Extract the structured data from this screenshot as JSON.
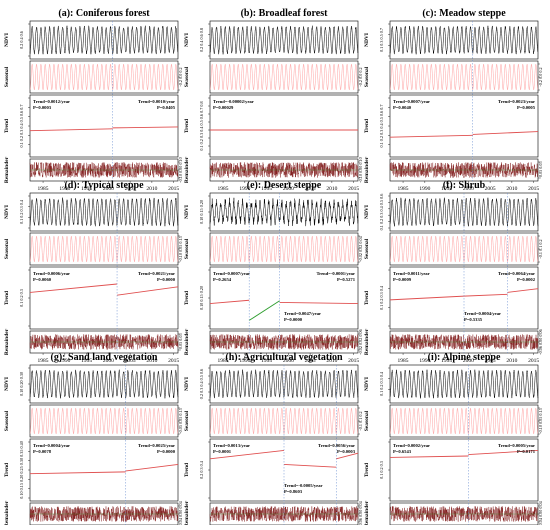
{
  "figure": {
    "line_color": "#000000",
    "seasonal_color": "#ff8a8a",
    "trend_line_color": "#e05050",
    "remainder_color": "#7a1010",
    "remainder_accent_color": "#2e9e2e",
    "break_line_color": "#6a8fd0"
  },
  "row_labels": [
    "NDVI",
    "Seasonal",
    "Trend",
    "Remainder"
  ],
  "chart_data": [
    {
      "type": "line",
      "title": "(a): Coniferous forest",
      "x_ticks": [
        1985,
        1990,
        1995,
        2000,
        2005,
        2010,
        2015
      ],
      "xlim": [
        1982,
        2016
      ],
      "breakpoints": [
        2001
      ],
      "trend_segments": [
        {
          "x": [
            1982,
            2001
          ],
          "y": [
            0.35,
            0.37
          ]
        },
        {
          "x": [
            2001,
            2016
          ],
          "y": [
            0.38,
            0.39
          ]
        }
      ],
      "annotations": [
        {
          "text": "Trend=0.0012/year",
          "pos": "left"
        },
        {
          "text": "P=0.0003",
          "pos": "left"
        },
        {
          "text": "Trend=0.0010/year",
          "pos": "right"
        },
        {
          "text": "P=0.0405",
          "pos": "right"
        }
      ],
      "panels": [
        {
          "label": "NDVI",
          "ticks": [
            "0.2",
            "0.4",
            "0.6"
          ]
        },
        {
          "label": "Seasonal",
          "ticks": [
            "-0.2",
            "0.0",
            "0.2"
          ]
        },
        {
          "label": "Trend",
          "ticks": [
            "0.1",
            "0.2",
            "0.3",
            "0.4",
            "0.5",
            "0.6",
            "0.7"
          ]
        },
        {
          "label": "Remainder",
          "ticks": [
            "-0.10",
            "0.00",
            "0.10"
          ]
        }
      ]
    },
    {
      "type": "line",
      "title": "(b): Broadleaf forest",
      "x_ticks": [
        1985,
        1990,
        1995,
        2000,
        2005,
        2010,
        2015
      ],
      "xlim": [
        1982,
        2016
      ],
      "breakpoints": [],
      "trend_segments": [
        {
          "x": [
            1982,
            2016
          ],
          "y": [
            0.4,
            0.4
          ]
        }
      ],
      "annotations": [
        {
          "text": "Trend=-0.00002/year",
          "pos": "left"
        },
        {
          "text": "P=0.00029",
          "pos": "left"
        }
      ],
      "panels": [
        {
          "label": "NDVI",
          "ticks": [
            "0.2",
            "0.4",
            "0.6",
            "0.8"
          ]
        },
        {
          "label": "Seasonal",
          "ticks": [
            "-0.2",
            "0.0",
            "0.2"
          ]
        },
        {
          "label": "Trend",
          "ticks": [
            "0.1",
            "0.2",
            "0.3",
            "0.4",
            "0.5",
            "0.6",
            "0.7",
            "0.8"
          ]
        },
        {
          "label": "Remainder",
          "ticks": [
            "-0.10",
            "0.00",
            "0.10"
          ]
        }
      ]
    },
    {
      "type": "line",
      "title": "(c): Meadow steppe",
      "x_ticks": [
        1985,
        1990,
        1995,
        2000,
        2005,
        2010,
        2015
      ],
      "xlim": [
        1982,
        2016
      ],
      "breakpoints": [
        2001
      ],
      "trend_segments": [
        {
          "x": [
            1982,
            2001
          ],
          "y": [
            0.28,
            0.3
          ]
        },
        {
          "x": [
            2001,
            2016
          ],
          "y": [
            0.31,
            0.34
          ]
        }
      ],
      "annotations": [
        {
          "text": "Trend=0.0007/year",
          "pos": "left"
        },
        {
          "text": "P=0.0040",
          "pos": "left"
        },
        {
          "text": "Trend=0.0023/year",
          "pos": "right"
        },
        {
          "text": "P=0.0005",
          "pos": "right"
        }
      ],
      "panels": [
        {
          "label": "NDVI",
          "ticks": [
            "0.1",
            "0.3",
            "0.5",
            "0.7"
          ]
        },
        {
          "label": "Seasonal",
          "ticks": [
            "-0.2",
            "0.0",
            "0.2"
          ]
        },
        {
          "label": "Trend",
          "ticks": [
            "0.1",
            "0.2",
            "0.3",
            "0.4",
            "0.5",
            "0.6",
            "0.7"
          ]
        },
        {
          "label": "Remainder",
          "ticks": [
            "-0.05",
            "0.05"
          ]
        }
      ]
    },
    {
      "type": "line",
      "title": "(d): Typical steppe",
      "x_ticks": [
        1985,
        1990,
        1995,
        2000,
        2005,
        2010,
        2015
      ],
      "xlim": [
        1982,
        2016
      ],
      "breakpoints": [
        2002
      ],
      "trend_segments": [
        {
          "x": [
            1982,
            2002
          ],
          "y": [
            0.22,
            0.25
          ]
        },
        {
          "x": [
            2002,
            2016
          ],
          "y": [
            0.21,
            0.24
          ]
        }
      ],
      "annotations": [
        {
          "text": "Trend=0.0006/year",
          "pos": "left"
        },
        {
          "text": "P=0.0060",
          "pos": "left"
        },
        {
          "text": "Trend=0.0021/year",
          "pos": "right"
        },
        {
          "text": "P=0.0000",
          "pos": "right"
        }
      ],
      "panels": [
        {
          "label": "NDVI",
          "ticks": [
            "0.1",
            "0.2",
            "0.3",
            "0.4"
          ]
        },
        {
          "label": "Seasonal",
          "ticks": [
            "-0.10",
            "0.05",
            "0.15"
          ]
        },
        {
          "label": "Trend",
          "ticks": [
            "0.1",
            "0.2",
            "0.3"
          ]
        },
        {
          "label": "Remainder",
          "ticks": [
            "-0.05",
            "0.05"
          ]
        }
      ]
    },
    {
      "type": "line",
      "title": "(e): Desert steppe",
      "x_ticks": [
        1985,
        1990,
        1995,
        2000,
        2005,
        2010,
        2015
      ],
      "xlim": [
        1982,
        2016
      ],
      "breakpoints": [
        1991,
        1998
      ],
      "trend_segments": [
        {
          "x": [
            1982,
            1991
          ],
          "y": [
            0.14,
            0.146
          ]
        },
        {
          "x": [
            1991,
            1998
          ],
          "y": [
            0.11,
            0.145
          ]
        },
        {
          "x": [
            1998,
            2016
          ],
          "y": [
            0.142,
            0.14
          ]
        }
      ],
      "annotations": [
        {
          "text": "Trend=0.0007/year",
          "pos": "left"
        },
        {
          "text": "P=0.2654",
          "pos": "left"
        },
        {
          "text": "Trend=-0.0001/year",
          "pos": "right"
        },
        {
          "text": "P=0.5271",
          "pos": "right"
        },
        {
          "text": "Trend=0.0047/year",
          "pos": "middle"
        },
        {
          "text": "P=0.0000",
          "pos": "middle"
        }
      ],
      "panels": [
        {
          "label": "NDVI",
          "ticks": [
            "0.10",
            "0.15",
            "0.20"
          ]
        },
        {
          "label": "Seasonal",
          "ticks": [
            "-0.02",
            "0.02",
            "0.04"
          ]
        },
        {
          "label": "Trend",
          "ticks": [
            "0.10",
            "0.15",
            "0.20"
          ]
        },
        {
          "label": "Remainder",
          "ticks": [
            "-0.02",
            "0.02",
            "0.06"
          ]
        }
      ]
    },
    {
      "type": "line",
      "title": "(f): Shrub",
      "x_ticks": [
        1985,
        1990,
        1995,
        2000,
        2005,
        2010,
        2015
      ],
      "xlim": [
        1982,
        2016
      ],
      "breakpoints": [
        1999,
        2009
      ],
      "trend_segments": [
        {
          "x": [
            1982,
            1999
          ],
          "y": [
            0.24,
            0.26
          ]
        },
        {
          "x": [
            1999,
            2009
          ],
          "y": [
            0.26,
            0.27
          ]
        },
        {
          "x": [
            2009,
            2016
          ],
          "y": [
            0.28,
            0.3
          ]
        }
      ],
      "annotations": [
        {
          "text": "Trend=0.0011/year",
          "pos": "left"
        },
        {
          "text": "P=0.0009",
          "pos": "left"
        },
        {
          "text": "Trend=0.0004/year",
          "pos": "middle"
        },
        {
          "text": "P=0.5335",
          "pos": "middle"
        },
        {
          "text": "Trend=0.0064/year",
          "pos": "right"
        },
        {
          "text": "P=0.0002",
          "pos": "right"
        }
      ],
      "panels": [
        {
          "label": "NDVI",
          "ticks": [
            "0.1",
            "0.2",
            "0.3",
            "0.4",
            "0.5",
            "0.6"
          ]
        },
        {
          "label": "Seasonal",
          "ticks": [
            "-0.1",
            "0.1",
            "0.2"
          ]
        },
        {
          "label": "Trend",
          "ticks": [
            "0.1",
            "0.2",
            "0.3",
            "0.4"
          ]
        },
        {
          "label": "Remainder",
          "ticks": [
            "-0.06",
            "0.00",
            "0.06"
          ]
        }
      ]
    },
    {
      "type": "line",
      "title": "(g): Sand land vegetation",
      "x_ticks": [
        1985,
        1990,
        1995,
        2000,
        2005,
        2010,
        2015
      ],
      "xlim": [
        1982,
        2016
      ],
      "breakpoints": [
        2004
      ],
      "trend_segments": [
        {
          "x": [
            1982,
            2004
          ],
          "y": [
            0.23,
            0.24
          ]
        },
        {
          "x": [
            2004,
            2016
          ],
          "y": [
            0.245,
            0.28
          ]
        }
      ],
      "annotations": [
        {
          "text": "Trend=0.0004/year",
          "pos": "left"
        },
        {
          "text": "P=0.0078",
          "pos": "left"
        },
        {
          "text": "Trend=0.0025/year",
          "pos": "right"
        },
        {
          "text": "P=0.0000",
          "pos": "right"
        }
      ],
      "panels": [
        {
          "label": "NDVI",
          "ticks": [
            "0.10",
            "0.20",
            "0.30"
          ]
        },
        {
          "label": "Seasonal",
          "ticks": [
            "-0.05",
            "0.05",
            "0.15"
          ]
        },
        {
          "label": "Trend",
          "ticks": [
            "0.10",
            "0.15",
            "0.20",
            "0.25",
            "0.30",
            "0.35",
            "0.40"
          ]
        },
        {
          "label": "Remainder",
          "ticks": [
            "-0.04",
            "0.00",
            "0.04"
          ]
        }
      ]
    },
    {
      "type": "line",
      "title": "(h): Agricultural vegetation",
      "x_ticks": [
        1985,
        1990,
        1995,
        2000,
        2005,
        2010,
        2015
      ],
      "xlim": [
        1982,
        2016
      ],
      "breakpoints": [
        1999,
        2011
      ],
      "trend_segments": [
        {
          "x": [
            1982,
            1999
          ],
          "y": [
            0.34,
            0.37
          ]
        },
        {
          "x": [
            1999,
            2011
          ],
          "y": [
            0.32,
            0.31
          ]
        },
        {
          "x": [
            2011,
            2016
          ],
          "y": [
            0.34,
            0.36
          ]
        }
      ],
      "annotations": [
        {
          "text": "Trend=0.0013/year",
          "pos": "left"
        },
        {
          "text": "P=0.0001",
          "pos": "left"
        },
        {
          "text": "Trend=0.0056/year",
          "pos": "right"
        },
        {
          "text": "P=0.0003",
          "pos": "right"
        },
        {
          "text": "Trend=-0.0005/year",
          "pos": "middle"
        },
        {
          "text": "P=0.8603",
          "pos": "middle"
        }
      ],
      "panels": [
        {
          "label": "NDVI",
          "ticks": [
            "0.2",
            "0.3",
            "0.4",
            "0.5",
            "0.6"
          ]
        },
        {
          "label": "Seasonal",
          "ticks": [
            "-0.1",
            "0.1",
            "0.2"
          ]
        },
        {
          "label": "Trend",
          "ticks": [
            "0.2",
            "0.3",
            "0.4"
          ]
        },
        {
          "label": "Remainder",
          "ticks": [
            "-0.06",
            "0.00",
            "0.04"
          ]
        }
      ]
    },
    {
      "type": "line",
      "title": "(i): Alpine steppe",
      "x_ticks": [
        1985,
        1990,
        1995,
        2000,
        2005,
        2010,
        2015
      ],
      "xlim": [
        1982,
        2016
      ],
      "breakpoints": [
        2000
      ],
      "trend_segments": [
        {
          "x": [
            1982,
            2000
          ],
          "y": [
            0.245,
            0.25
          ]
        },
        {
          "x": [
            2000,
            2016
          ],
          "y": [
            0.255,
            0.27
          ]
        }
      ],
      "annotations": [
        {
          "text": "Trend=0.0002/year",
          "pos": "left"
        },
        {
          "text": "P=0.6543",
          "pos": "left"
        },
        {
          "text": "Trend=0.0005/year",
          "pos": "right"
        },
        {
          "text": "P=0.0171",
          "pos": "right"
        }
      ],
      "panels": [
        {
          "label": "NDVI",
          "ticks": [
            "0.1",
            "0.2",
            "0.3",
            "0.4"
          ]
        },
        {
          "label": "Seasonal",
          "ticks": [
            "-0.10",
            "0.05",
            "0.15"
          ]
        },
        {
          "label": "Trend",
          "ticks": [
            "0.1",
            "0.2",
            "0.3"
          ]
        },
        {
          "label": "Remainder",
          "ticks": [
            "-0.04",
            "0.00",
            "0.04"
          ]
        }
      ]
    }
  ]
}
